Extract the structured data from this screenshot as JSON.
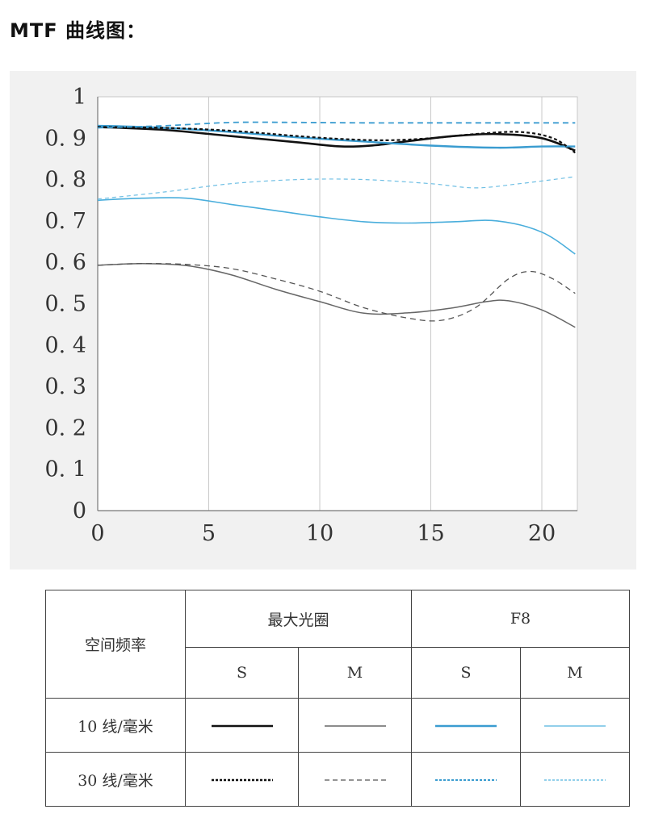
{
  "heading": "MTF 曲线图：",
  "chart_data": {
    "type": "line",
    "xlim": [
      0,
      21.6
    ],
    "ylim": [
      0,
      1
    ],
    "x_ticks": [
      "0",
      "5",
      "10",
      "15",
      "20"
    ],
    "x_tick_values": [
      0,
      5,
      10,
      15,
      20
    ],
    "y_ticks": [
      "0",
      "0. 1",
      "0. 2",
      "0. 3",
      "0. 4",
      "0. 5",
      "0. 6",
      "0. 7",
      "0. 8",
      "0. 9",
      "1"
    ],
    "y_tick_values": [
      0,
      0.1,
      0.2,
      0.3,
      0.4,
      0.5,
      0.6,
      0.7,
      0.8,
      0.9,
      1.0
    ],
    "grid": "vertical",
    "series": [
      {
        "name": "最大光圈 10 线/毫米 S",
        "color": "#111111",
        "dash": "solid",
        "width": 2.6,
        "x": [
          0,
          3,
          6,
          9,
          11,
          12.5,
          14,
          16,
          18,
          20,
          21.5
        ],
        "y": [
          0.927,
          0.92,
          0.905,
          0.89,
          0.88,
          0.883,
          0.893,
          0.905,
          0.91,
          0.9,
          0.87
        ]
      },
      {
        "name": "最大光圈 10 线/毫米 M",
        "color": "#666666",
        "dash": "solid",
        "width": 1.5,
        "x": [
          0,
          2,
          4,
          6,
          8,
          10,
          12,
          14,
          16,
          17.5,
          18.5,
          20,
          21.5
        ],
        "y": [
          0.593,
          0.597,
          0.592,
          0.57,
          0.535,
          0.505,
          0.477,
          0.478,
          0.49,
          0.505,
          0.507,
          0.485,
          0.443
        ]
      },
      {
        "name": "F8 10 线/毫米 S",
        "color": "#3a9cd0",
        "dash": "solid",
        "width": 2.4,
        "x": [
          0,
          3,
          6,
          9,
          12,
          15,
          18,
          20,
          21.5
        ],
        "y": [
          0.93,
          0.925,
          0.915,
          0.902,
          0.892,
          0.882,
          0.877,
          0.88,
          0.88
        ]
      },
      {
        "name": "F8 10 线/毫米 M",
        "color": "#4aaedc",
        "dash": "solid",
        "width": 1.6,
        "x": [
          0,
          2,
          4,
          6,
          8,
          10,
          12,
          14,
          16,
          18,
          20,
          21.5
        ],
        "y": [
          0.75,
          0.755,
          0.755,
          0.74,
          0.725,
          0.71,
          0.698,
          0.695,
          0.698,
          0.7,
          0.673,
          0.62
        ]
      },
      {
        "name": "最大光圈 30 线/毫米 S",
        "color": "#111111",
        "dash": "4,3",
        "width": 2.2,
        "x": [
          0,
          3,
          6,
          9,
          11,
          13,
          15,
          17,
          19,
          20.5,
          21.5
        ],
        "y": [
          0.927,
          0.925,
          0.918,
          0.905,
          0.898,
          0.895,
          0.9,
          0.91,
          0.915,
          0.9,
          0.865
        ]
      },
      {
        "name": "最大光圈 30 线/毫米 M",
        "color": "#555555",
        "dash": "7,5",
        "width": 1.3,
        "x": [
          0,
          2,
          4,
          6,
          8,
          10,
          12,
          14,
          15.5,
          17,
          18.5,
          19.5,
          20.5,
          21.5
        ],
        "y": [
          0.593,
          0.597,
          0.595,
          0.585,
          0.56,
          0.53,
          0.49,
          0.465,
          0.46,
          0.49,
          0.56,
          0.578,
          0.56,
          0.525
        ]
      },
      {
        "name": "F8 30 线/毫米 S",
        "color": "#3a9cd0",
        "dash": "7,5",
        "width": 1.8,
        "x": [
          0,
          3,
          6,
          9,
          12,
          15,
          18,
          21.5
        ],
        "y": [
          0.925,
          0.93,
          0.938,
          0.938,
          0.937,
          0.937,
          0.937,
          0.937
        ]
      },
      {
        "name": "F8 30 线/毫米 M",
        "color": "#6fbfe4",
        "dash": "5,4",
        "width": 1.2,
        "x": [
          0,
          3,
          6,
          9,
          12,
          15,
          17,
          19,
          21.5
        ],
        "y": [
          0.753,
          0.77,
          0.79,
          0.8,
          0.8,
          0.79,
          0.78,
          0.79,
          0.807
        ]
      }
    ]
  },
  "legend": {
    "corner_label": "空间频率",
    "groups": [
      "最大光圈",
      "F8"
    ],
    "sub_labels": [
      "S",
      "M",
      "S",
      "M"
    ],
    "rows": [
      {
        "label": "10 线/毫米",
        "samples": [
          {
            "color": "#111111",
            "dash": "",
            "width": 2.6
          },
          {
            "color": "#666666",
            "dash": "",
            "width": 1.5
          },
          {
            "color": "#3a9cd0",
            "dash": "",
            "width": 2.4
          },
          {
            "color": "#6fbfe4",
            "dash": "",
            "width": 1.6
          }
        ]
      },
      {
        "label": "30 线/毫米",
        "samples": [
          {
            "color": "#111111",
            "dash": "3,2",
            "width": 2.4
          },
          {
            "color": "#555555",
            "dash": "6,4",
            "width": 1.3
          },
          {
            "color": "#3a9cd0",
            "dash": "3,2",
            "width": 2.0
          },
          {
            "color": "#6fbfe4",
            "dash": "3,2",
            "width": 1.4
          }
        ]
      }
    ]
  }
}
